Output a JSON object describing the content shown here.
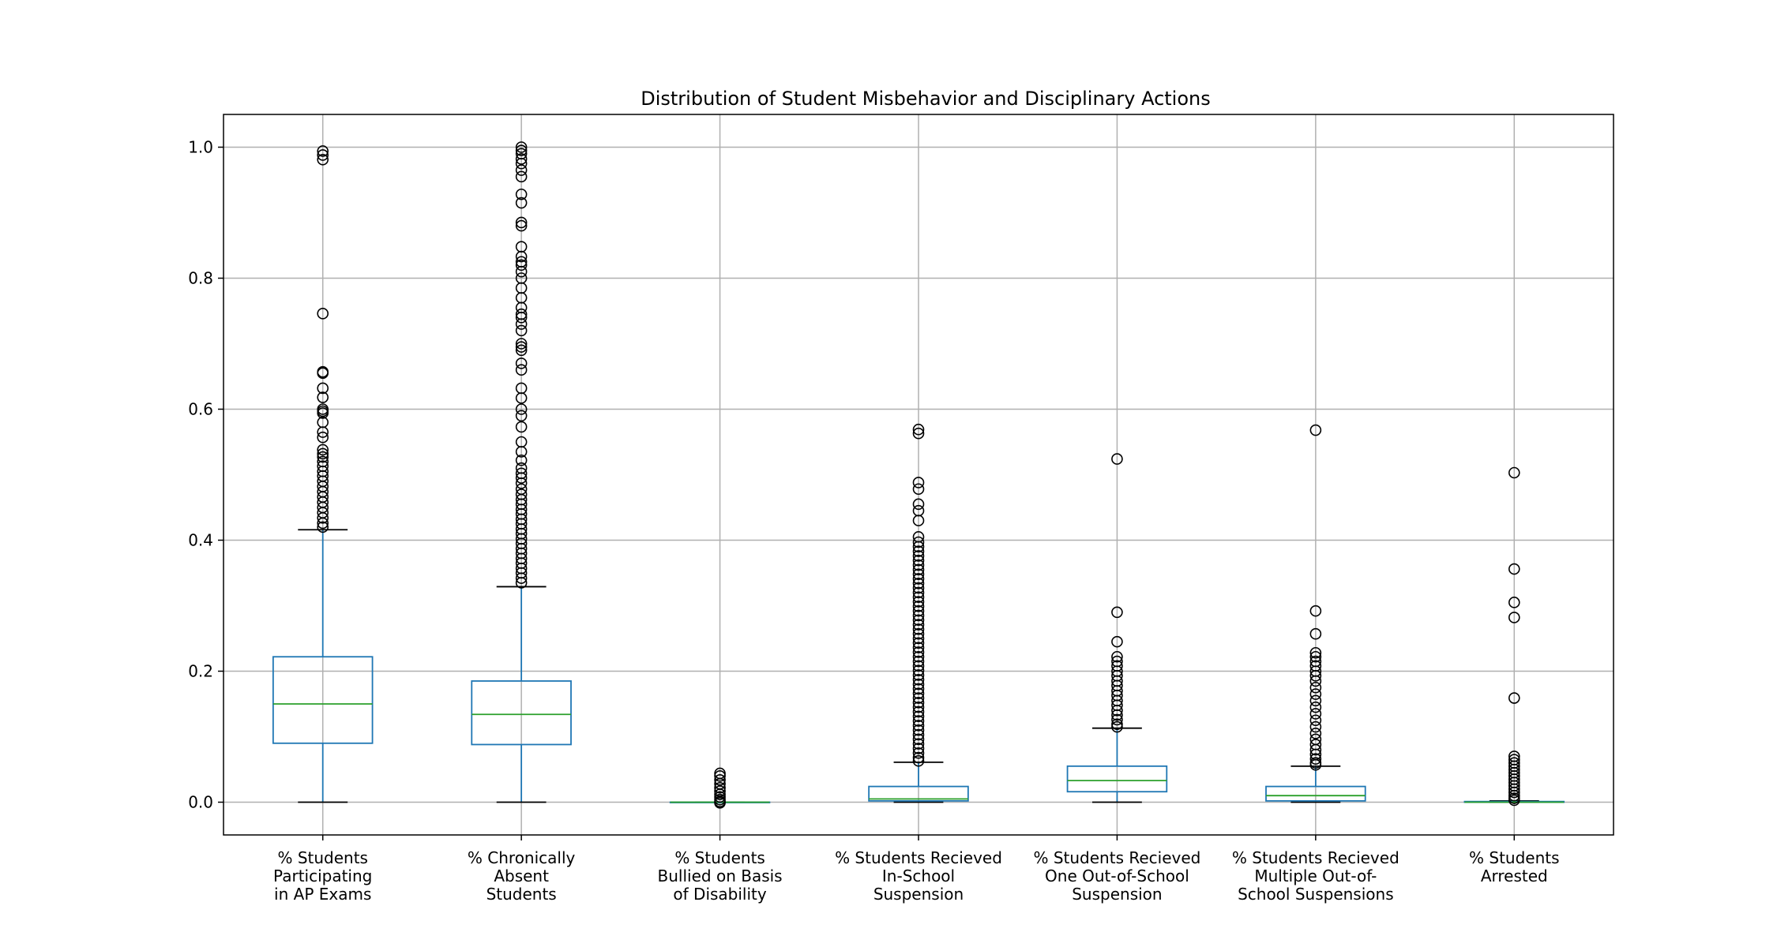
{
  "chart_data": {
    "type": "box",
    "title": "Distribution of Student Misbehavior and Disciplinary Actions",
    "xlabel": "",
    "ylabel": "",
    "ylim": [
      -0.05,
      1.05
    ],
    "yticks": [
      "0.0",
      "0.2",
      "0.4",
      "0.6",
      "0.8",
      "1.0"
    ],
    "grid": true,
    "colors": {
      "box": "#1f77b4",
      "median": "#2ca02c",
      "whisker_cap": "#000000",
      "flier": "#000000",
      "grid": "#b0b0b0"
    },
    "boxes": [
      {
        "label": [
          "% Students",
          "Participating",
          "in AP Exams"
        ],
        "whislo": 0.0,
        "q1": 0.09,
        "med": 0.15,
        "q3": 0.222,
        "whishi": 0.416,
        "fliers": [
          0.994,
          0.988,
          0.981,
          0.746,
          0.657,
          0.655,
          0.632,
          0.618,
          0.6,
          0.597,
          0.594,
          0.58,
          0.565,
          0.557,
          0.538,
          0.532,
          0.527,
          0.52,
          0.513,
          0.505,
          0.498,
          0.49,
          0.482,
          0.474,
          0.466,
          0.458,
          0.45,
          0.442,
          0.434,
          0.426,
          0.42
        ]
      },
      {
        "label": [
          "% Chronically",
          "Absent",
          "Students"
        ],
        "whislo": 0.0,
        "q1": 0.088,
        "med": 0.134,
        "q3": 0.185,
        "whishi": 0.329,
        "fliers": [
          1.0,
          0.995,
          0.99,
          0.982,
          0.975,
          0.965,
          0.955,
          0.928,
          0.915,
          0.885,
          0.88,
          0.848,
          0.833,
          0.825,
          0.82,
          0.81,
          0.8,
          0.785,
          0.77,
          0.755,
          0.745,
          0.74,
          0.73,
          0.72,
          0.7,
          0.695,
          0.69,
          0.67,
          0.66,
          0.632,
          0.617,
          0.6,
          0.59,
          0.573,
          0.55,
          0.535,
          0.522,
          0.51,
          0.502,
          0.495,
          0.487,
          0.478,
          0.47,
          0.462,
          0.455,
          0.447,
          0.44,
          0.432,
          0.425,
          0.417,
          0.41,
          0.402,
          0.395,
          0.387,
          0.38,
          0.372,
          0.365,
          0.357,
          0.35,
          0.342,
          0.335
        ]
      },
      {
        "label": [
          "% Students",
          "Bullied on Basis",
          "of Disability"
        ],
        "whislo": 0.0,
        "q1": 0.0,
        "med": 0.0,
        "q3": 0.0,
        "whishi": 0.0,
        "fliers": [
          0.044,
          0.04,
          0.034,
          0.028,
          0.022,
          0.017,
          0.012,
          0.008,
          0.004,
          0.001,
          -0.001
        ]
      },
      {
        "label": [
          "% Students Recieved",
          "In-School",
          "Suspension"
        ],
        "whislo": 0.0,
        "q1": 0.002,
        "med": 0.005,
        "q3": 0.024,
        "whishi": 0.061,
        "fliers": [
          0.569,
          0.563,
          0.488,
          0.478,
          0.455,
          0.445,
          0.43,
          0.405,
          0.397,
          0.39,
          0.383,
          0.376,
          0.369,
          0.362,
          0.355,
          0.348,
          0.341,
          0.334,
          0.327,
          0.32,
          0.313,
          0.306,
          0.299,
          0.292,
          0.285,
          0.278,
          0.271,
          0.264,
          0.257,
          0.25,
          0.243,
          0.236,
          0.229,
          0.222,
          0.215,
          0.208,
          0.201,
          0.194,
          0.187,
          0.18,
          0.173,
          0.166,
          0.159,
          0.152,
          0.145,
          0.138,
          0.131,
          0.124,
          0.117,
          0.11,
          0.103,
          0.096,
          0.089,
          0.082,
          0.075,
          0.068,
          0.063
        ]
      },
      {
        "label": [
          "% Students Recieved",
          "One Out-of-School",
          "Suspension"
        ],
        "whislo": 0.0,
        "q1": 0.016,
        "med": 0.033,
        "q3": 0.055,
        "whishi": 0.113,
        "fliers": [
          0.524,
          0.29,
          0.245,
          0.222,
          0.215,
          0.208,
          0.2,
          0.193,
          0.185,
          0.178,
          0.17,
          0.163,
          0.155,
          0.148,
          0.14,
          0.133,
          0.126,
          0.119,
          0.115
        ]
      },
      {
        "label": [
          "% Students Recieved",
          "Multiple Out-of-",
          "School Suspensions"
        ],
        "whislo": 0.0,
        "q1": 0.002,
        "med": 0.01,
        "q3": 0.024,
        "whishi": 0.055,
        "fliers": [
          0.568,
          0.292,
          0.257,
          0.228,
          0.222,
          0.215,
          0.208,
          0.2,
          0.193,
          0.185,
          0.175,
          0.165,
          0.155,
          0.145,
          0.135,
          0.125,
          0.115,
          0.105,
          0.096,
          0.088,
          0.08,
          0.073,
          0.066,
          0.06,
          0.057
        ]
      },
      {
        "label": [
          "% Students",
          "Arrested"
        ],
        "whislo": 0.0,
        "q1": 0.0,
        "med": 0.0,
        "q3": 0.001,
        "whishi": 0.002,
        "fliers": [
          0.503,
          0.356,
          0.305,
          0.282,
          0.159,
          0.07,
          0.065,
          0.06,
          0.055,
          0.05,
          0.045,
          0.04,
          0.035,
          0.03,
          0.025,
          0.02,
          0.015,
          0.01,
          0.006,
          0.003
        ]
      }
    ]
  }
}
